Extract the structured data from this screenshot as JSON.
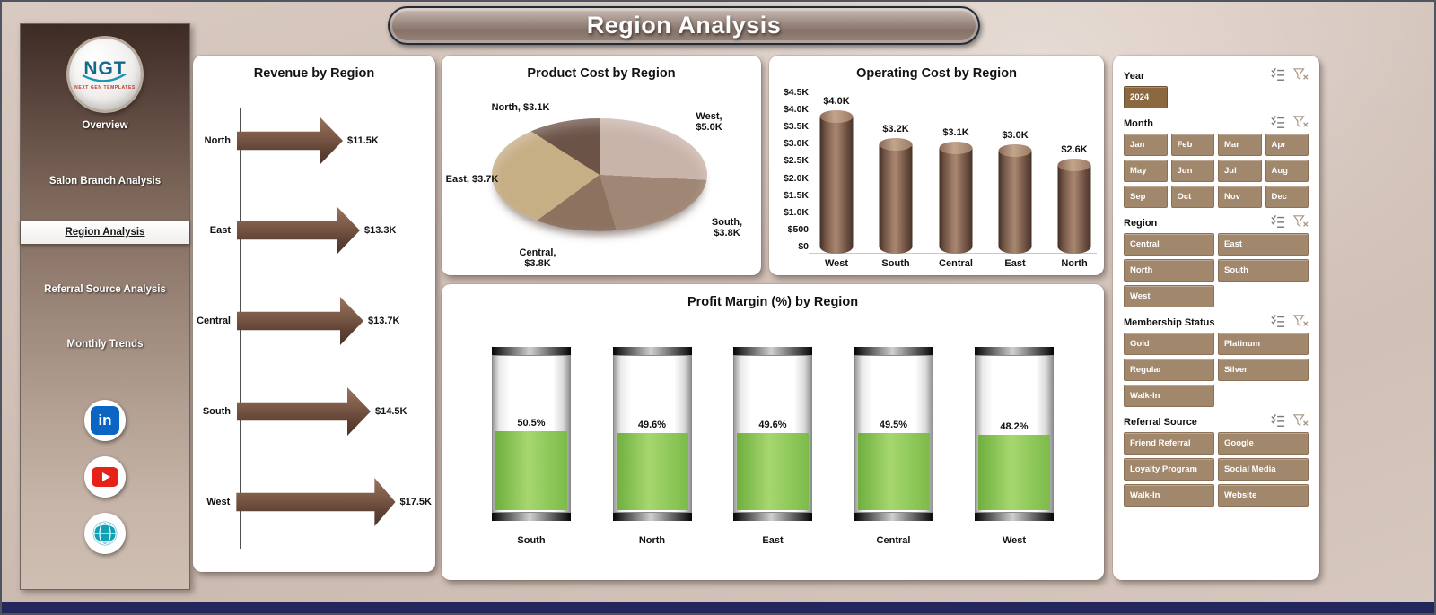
{
  "title": "Region Analysis",
  "sidebar": {
    "logo": {
      "text": "NGT",
      "sub": "NEXT GEN TEMPLATES"
    },
    "items": [
      {
        "label": "Overview",
        "active": false
      },
      {
        "label": "Salon Branch Analysis",
        "active": false
      },
      {
        "label": "Region Analysis",
        "active": true
      },
      {
        "label": "Referral Source Analysis",
        "active": false
      },
      {
        "label": "Monthly Trends",
        "active": false
      }
    ],
    "social": [
      {
        "name": "linkedin",
        "badge": "in"
      },
      {
        "name": "youtube"
      },
      {
        "name": "website"
      }
    ]
  },
  "chart_data": [
    {
      "type": "bar",
      "orientation": "horizontal",
      "title": "Revenue by Region",
      "categories": [
        "North",
        "East",
        "Central",
        "South",
        "West"
      ],
      "values": [
        11.5,
        13.3,
        13.7,
        14.5,
        17.5
      ],
      "labels": [
        "$11.5K",
        "$13.3K",
        "$13.7K",
        "$14.5K",
        "$17.5K"
      ],
      "unit": "thousand USD",
      "bar_color": "#6e4f3e"
    },
    {
      "type": "pie",
      "title": "Product Cost by Region",
      "slices": [
        {
          "label": "West",
          "value": 5.0,
          "text": "West, $5.0K",
          "color": "#c9b4aa"
        },
        {
          "label": "South",
          "value": 3.8,
          "text": "South, $3.8K",
          "color": "#a08674"
        },
        {
          "label": "Central",
          "value": 3.8,
          "text": "Central, $3.8K",
          "color": "#8d7260"
        },
        {
          "label": "East",
          "value": 3.7,
          "text": "East, $3.7K",
          "color": "#c6ae85"
        },
        {
          "label": "North",
          "value": 3.1,
          "text": "North, $3.1K",
          "color": "#6b5348"
        }
      ]
    },
    {
      "type": "bar",
      "orientation": "vertical",
      "title": "Operating Cost by Region",
      "categories": [
        "West",
        "South",
        "Central",
        "East",
        "North"
      ],
      "values": [
        4.0,
        3.2,
        3.1,
        3.0,
        2.6
      ],
      "labels": [
        "$4.0K",
        "$3.2K",
        "$3.1K",
        "$3.0K",
        "$2.6K"
      ],
      "y_ticks": [
        "$4.5K",
        "$4.0K",
        "$3.5K",
        "$3.0K",
        "$2.5K",
        "$2.0K",
        "$1.5K",
        "$1.0K",
        "$500",
        "$0"
      ],
      "ylim": [
        0,
        4.5
      ],
      "bar_color": "#7a5b49"
    },
    {
      "type": "gauge",
      "title": "Profit Margin (%) by Region",
      "categories": [
        "South",
        "North",
        "East",
        "Central",
        "West"
      ],
      "values": [
        50.5,
        49.6,
        49.6,
        49.5,
        48.2
      ],
      "labels": [
        "50.5%",
        "49.6%",
        "49.6%",
        "49.5%",
        "48.2%"
      ],
      "fill_color": "#8bc34a"
    }
  ],
  "slicers": [
    {
      "label": "Year",
      "options": [
        "2024"
      ],
      "selected": [
        "2024"
      ]
    },
    {
      "label": "Month",
      "options": [
        "Jan",
        "Feb",
        "Mar",
        "Apr",
        "May",
        "Jun",
        "Jul",
        "Aug",
        "Sep",
        "Oct",
        "Nov",
        "Dec"
      ]
    },
    {
      "label": "Region",
      "options": [
        "Central",
        "East",
        "North",
        "South",
        "West"
      ]
    },
    {
      "label": "Membership Status",
      "options": [
        "Gold",
        "Platinum",
        "Regular",
        "Silver",
        "Walk-In"
      ]
    },
    {
      "label": "Referral Source",
      "options": [
        "Friend Referral",
        "Google",
        "Loyalty Program",
        "Social Media",
        "Walk-In",
        "Website"
      ]
    }
  ],
  "colors": {
    "accent_brown": "#6e4f3e",
    "slicer_button": "#a1876c",
    "background": "#cfbfb4",
    "footer": "#23275c",
    "gauge_green": "#8bc34a"
  }
}
